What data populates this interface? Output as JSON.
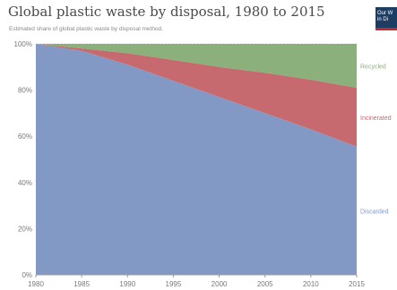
{
  "chart_data": {
    "type": "area",
    "stacked": true,
    "percent": true,
    "title": "Global plastic waste by disposal, 1980 to 2015",
    "subtitle": "Estimated share of global plastic waste by disposal method.",
    "x": [
      1980,
      1985,
      1990,
      1995,
      2000,
      2005,
      2010,
      2015
    ],
    "x_ticks": [
      "1980",
      "1985",
      "1990",
      "1995",
      "2000",
      "2005",
      "2010",
      "2015"
    ],
    "y_ticks": [
      "0%",
      "20%",
      "40%",
      "60%",
      "80%",
      "100%"
    ],
    "ylim": [
      0,
      100
    ],
    "grid": true,
    "legend": "right",
    "series": [
      {
        "name": "Discarded",
        "color": "#8299c6",
        "values": [
          100,
          97,
          91,
          84,
          77,
          70,
          63,
          55.5
        ]
      },
      {
        "name": "Incinerated",
        "color": "#c76a6f",
        "values": [
          0,
          1,
          5,
          9,
          13,
          17.5,
          21.5,
          25.5
        ]
      },
      {
        "name": "Recycled",
        "color": "#8cb07c",
        "values": [
          0,
          2,
          4,
          7,
          10,
          12.5,
          15.5,
          19
        ]
      }
    ]
  },
  "logo": {
    "line1": "Our W",
    "line2": "in Di"
  }
}
